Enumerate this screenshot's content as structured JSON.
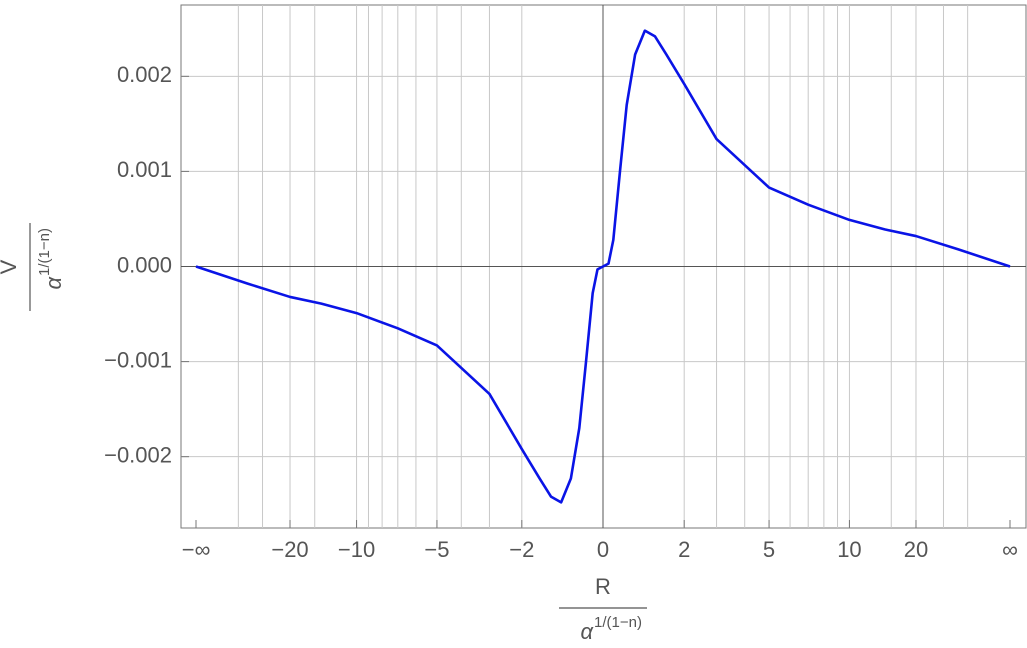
{
  "chart_data": {
    "type": "line",
    "xlabel": {
      "numerator": "R",
      "base": "α",
      "exponent": "1/(1−n)"
    },
    "ylabel": {
      "numerator": "V",
      "base": "α",
      "exponent": "1/(1−n)"
    },
    "x": [
      "-Infinity",
      -40,
      -20,
      -14,
      -10,
      -7,
      -5,
      -3,
      -2,
      -1.5,
      -1.2,
      -0.94,
      -0.7,
      -0.5,
      -0.35,
      -0.2,
      -0.1,
      0,
      0.1,
      0.2,
      0.35,
      0.5,
      0.7,
      0.94,
      1.2,
      1.5,
      2,
      3,
      5,
      7,
      10,
      14,
      20,
      40,
      "Infinity"
    ],
    "series": [
      {
        "color": "#0a14e6",
        "values": [
          0,
          -0.00018,
          -0.00032,
          -0.00039,
          -0.00049,
          -0.00065,
          -0.00083,
          -0.00134,
          -0.00192,
          -0.00223,
          -0.00242,
          -0.00248,
          -0.00223,
          -0.0017,
          -0.00102,
          -0.00028,
          -3e-05,
          0,
          3e-05,
          0.00028,
          0.00102,
          0.0017,
          0.00223,
          0.00248,
          0.00242,
          0.00223,
          0.00192,
          0.00134,
          0.00083,
          0.00065,
          0.00049,
          0.00039,
          0.00032,
          0.00018,
          0
        ]
      }
    ],
    "xlim": [
      "-Infinity",
      "Infinity"
    ],
    "xticks": [
      {
        "value": "-Infinity",
        "label": "−∞"
      },
      {
        "value": -20,
        "label": "−20"
      },
      {
        "value": -10,
        "label": "−10"
      },
      {
        "value": -5,
        "label": "−5"
      },
      {
        "value": -2,
        "label": "−2"
      },
      0,
      2,
      5,
      10,
      20,
      {
        "value": "Infinity",
        "label": "∞"
      }
    ],
    "xgrid": [
      -50,
      -30,
      -20,
      -15,
      -10,
      -9,
      -8,
      -7,
      -6,
      -5,
      -4,
      -3,
      -2,
      2,
      3,
      4,
      5,
      6,
      7,
      8,
      9,
      10,
      15,
      20,
      30,
      50
    ],
    "ylim": [
      -0.00275,
      0.00275
    ],
    "yticks": [
      {
        "value": -0.002,
        "label": "−0.002"
      },
      {
        "value": -0.001,
        "label": "−0.001"
      },
      {
        "value": 0,
        "label": "0.000"
      },
      0.001,
      0.002
    ],
    "grid": true
  }
}
